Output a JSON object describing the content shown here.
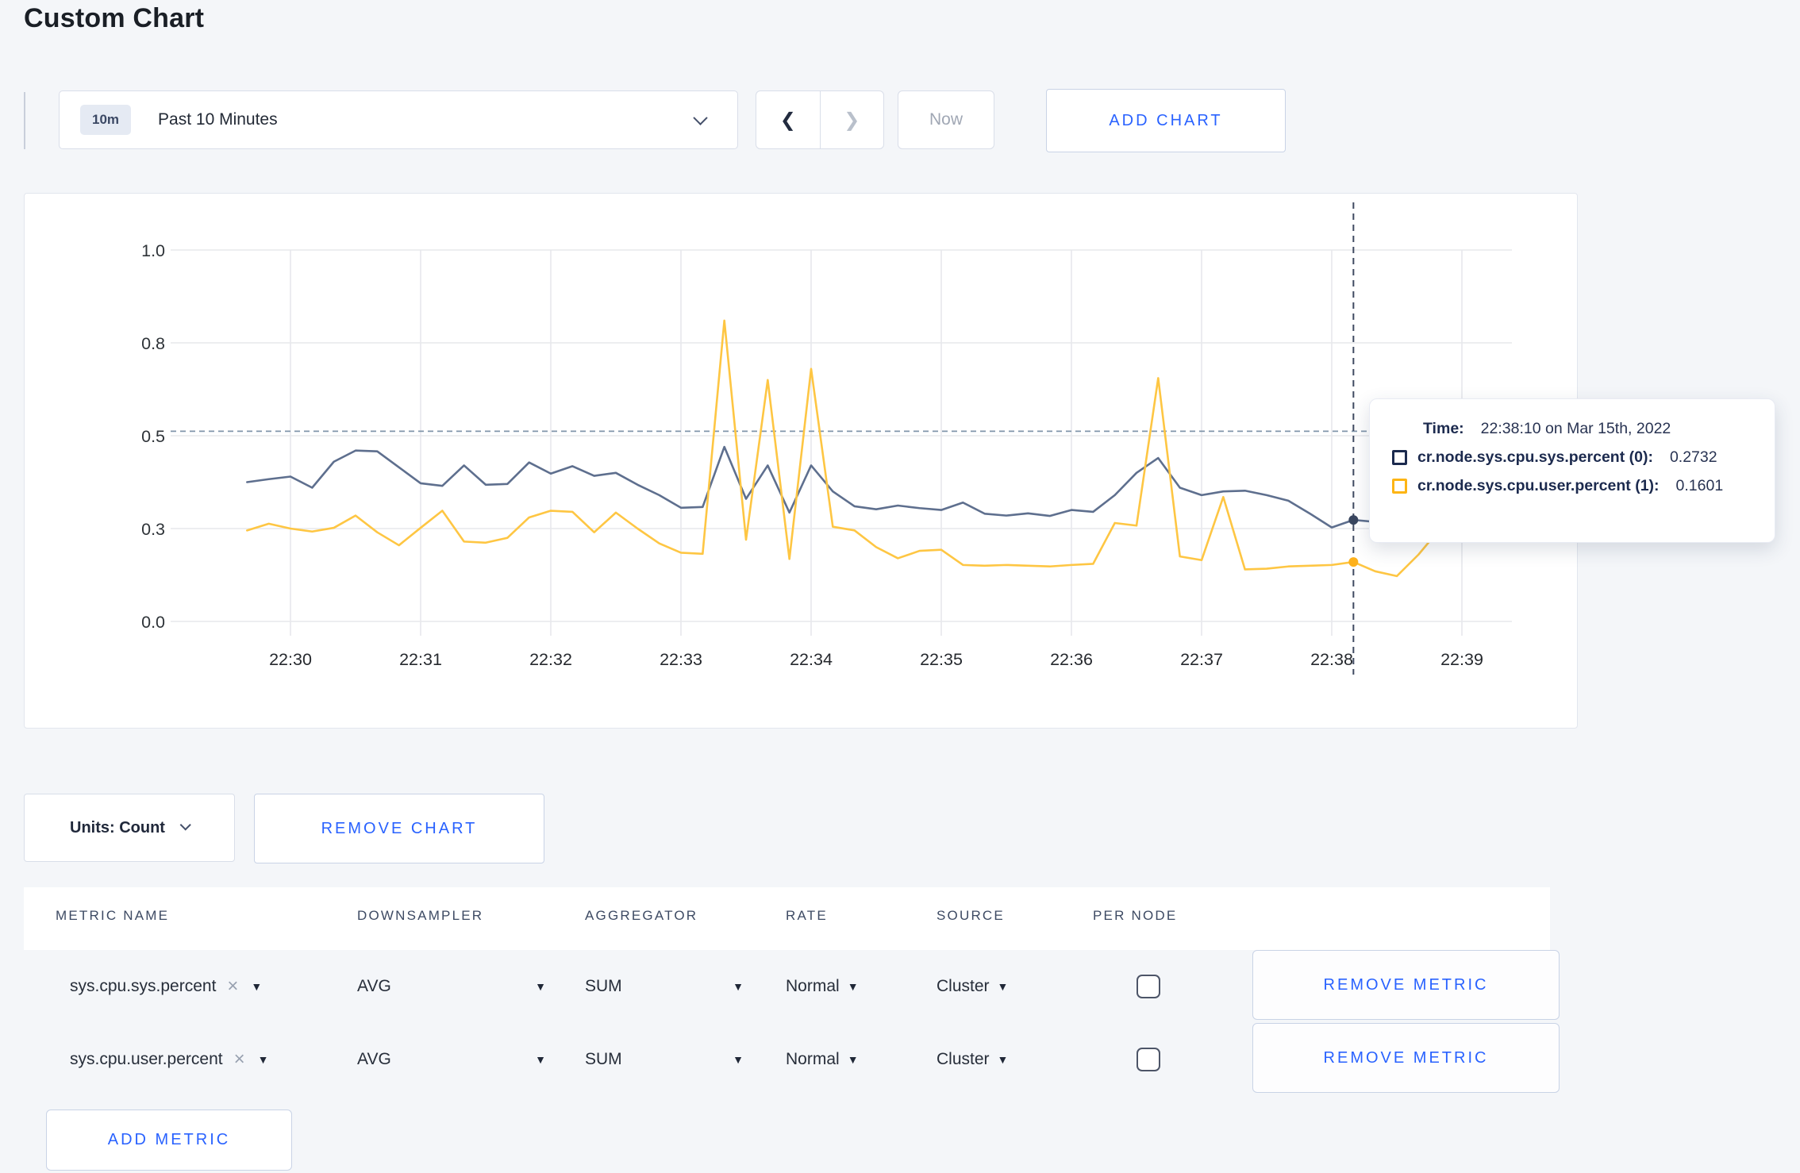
{
  "page": {
    "title": "Custom Chart",
    "background": "#f4f6f9",
    "accent_color": "#2962ff"
  },
  "toolbar": {
    "time_window_badge": "10m",
    "time_window_label": "Past 10 Minutes",
    "prev_icon": "❮",
    "next_icon": "❯",
    "now_label": "Now",
    "add_chart_label": "ADD CHART"
  },
  "tooltip": {
    "time_label": "Time:",
    "time_value": "22:38:10 on Mar 15th, 2022",
    "rows": [
      {
        "label": "cr.node.sys.cpu.sys.percent (0):",
        "value": "0.2732",
        "swatch_color": "#1b2a4e"
      },
      {
        "label": "cr.node.sys.cpu.user.percent (1):",
        "value": "0.1601",
        "swatch_color": "#fdb515"
      }
    ]
  },
  "chart_footer": {
    "units_label": "Units: Count",
    "remove_chart_label": "REMOVE CHART"
  },
  "metrics_table": {
    "headers": [
      "METRIC NAME",
      "DOWNSAMPLER",
      "AGGREGATOR",
      "RATE",
      "SOURCE",
      "PER NODE"
    ],
    "clear_icon": "×",
    "caret_icon": "▼",
    "rows": [
      {
        "metric": "sys.cpu.sys.percent",
        "downsampler": "AVG",
        "aggregator": "SUM",
        "rate": "Normal",
        "source": "Cluster",
        "per_node_checked": false,
        "remove_label": "REMOVE METRIC"
      },
      {
        "metric": "sys.cpu.user.percent",
        "downsampler": "AVG",
        "aggregator": "SUM",
        "rate": "Normal",
        "source": "Cluster",
        "per_node_checked": false,
        "remove_label": "REMOVE METRIC"
      }
    ],
    "add_metric_label": "ADD METRIC"
  },
  "chart_data": {
    "type": "line",
    "title": "",
    "xlabel": "",
    "ylabel": "",
    "ylim": [
      0,
      1
    ],
    "grid": true,
    "x_tick_labels": [
      "22:30",
      "22:31",
      "22:32",
      "22:33",
      "22:34",
      "22:35",
      "22:36",
      "22:37",
      "22:38",
      "22:39"
    ],
    "y_tick_labels": [
      "0.0",
      "0.3",
      "0.5",
      "0.8",
      "1.0"
    ],
    "y_tick_values": [
      0,
      0.25,
      0.5,
      0.75,
      1.0
    ],
    "start_time": "22:29:40",
    "sample_interval_seconds": 10,
    "threshold_value": 0.512,
    "crosshair": {
      "time": "22:38:10",
      "marker_index": 51
    },
    "series": [
      {
        "name": "cr.node.sys.cpu.sys.percent",
        "color": "#5e6f8e",
        "marker_color": "#39465f",
        "values": [
          0.375,
          0.383,
          0.39,
          0.36,
          0.43,
          0.46,
          0.458,
          0.415,
          0.372,
          0.365,
          0.42,
          0.368,
          0.37,
          0.428,
          0.398,
          0.418,
          0.392,
          0.4,
          0.368,
          0.34,
          0.306,
          0.308,
          0.47,
          0.33,
          0.42,
          0.293,
          0.42,
          0.35,
          0.31,
          0.302,
          0.312,
          0.305,
          0.3,
          0.32,
          0.29,
          0.285,
          0.291,
          0.284,
          0.3,
          0.295,
          0.34,
          0.4,
          0.44,
          0.36,
          0.34,
          0.35,
          0.352,
          0.34,
          0.325,
          0.29,
          0.253,
          0.2732,
          0.268,
          0.3,
          0.31,
          0.3,
          0.295,
          0.31,
          0.303
        ]
      },
      {
        "name": "cr.node.sys.cpu.user.percent",
        "color": "#fec643",
        "marker_color": "#fdb11c",
        "values": [
          0.245,
          0.263,
          0.25,
          0.242,
          0.252,
          0.285,
          0.24,
          0.205,
          0.252,
          0.298,
          0.215,
          0.212,
          0.225,
          0.28,
          0.298,
          0.295,
          0.24,
          0.293,
          0.25,
          0.21,
          0.185,
          0.182,
          0.81,
          0.22,
          0.65,
          0.168,
          0.68,
          0.255,
          0.245,
          0.2,
          0.17,
          0.19,
          0.193,
          0.152,
          0.15,
          0.152,
          0.15,
          0.148,
          0.152,
          0.155,
          0.265,
          0.258,
          0.655,
          0.175,
          0.165,
          0.335,
          0.14,
          0.142,
          0.148,
          0.15,
          0.152,
          0.1601,
          0.135,
          0.122,
          0.18,
          0.25,
          0.272,
          0.24,
          0.285
        ]
      }
    ]
  }
}
